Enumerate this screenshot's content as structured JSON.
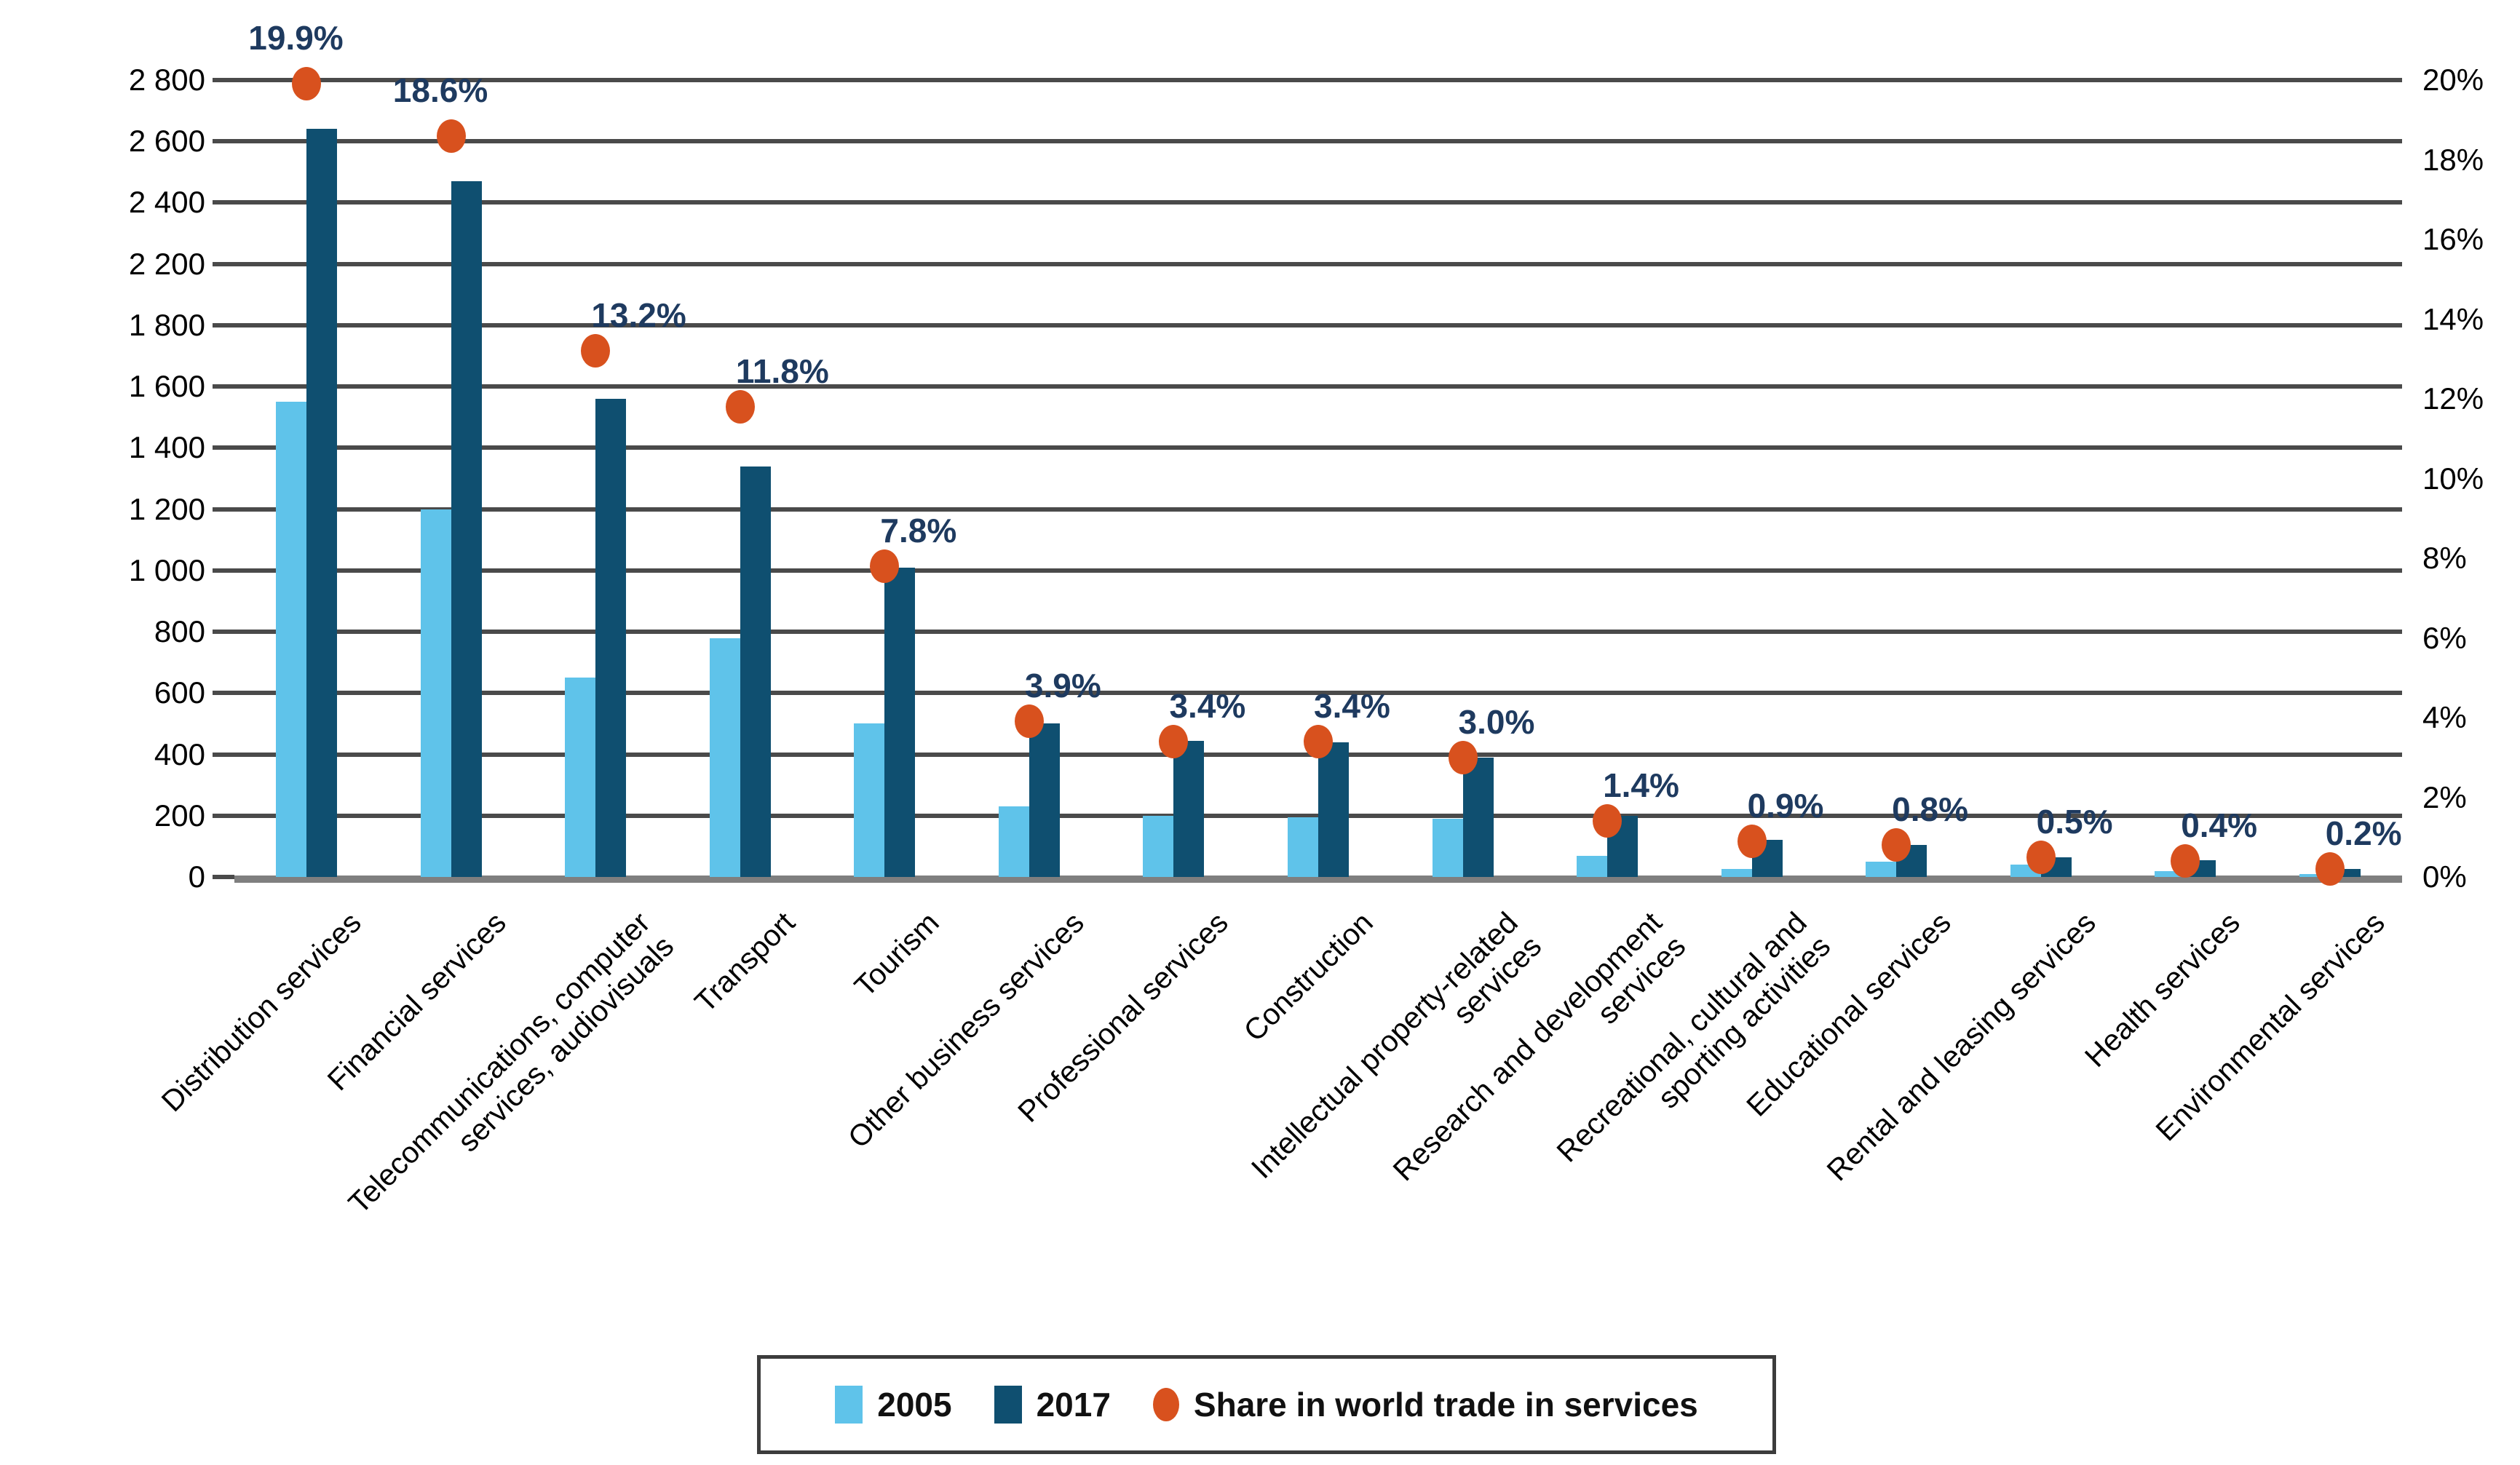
{
  "chart_data": {
    "type": "bar",
    "title": "",
    "xlabel": "",
    "ylabel_left": "",
    "ylabel_right": "",
    "grid": true,
    "legend_position": "bottom-center",
    "categories": [
      [
        "Distribution services"
      ],
      [
        "Financial services"
      ],
      [
        "Telecommunications, computer",
        "services, audiovisuals"
      ],
      [
        "Transport"
      ],
      [
        "Tourism"
      ],
      [
        "Other business services"
      ],
      [
        "Professional services"
      ],
      [
        "Construction"
      ],
      [
        "Intellectual property-related",
        "services"
      ],
      [
        "Research and development",
        "services"
      ],
      [
        "Recreational, cultural and",
        "sporting activities"
      ],
      [
        "Educational services"
      ],
      [
        "Rental and leasing services"
      ],
      [
        "Health services"
      ],
      [
        "Environmental services"
      ]
    ],
    "series": [
      {
        "name": "2005",
        "color": "#5FC3EA",
        "values": [
          1550,
          1200,
          650,
          780,
          500,
          230,
          200,
          195,
          190,
          70,
          25,
          50,
          40,
          20,
          10
        ]
      },
      {
        "name": "2017",
        "color": "#0F4F70",
        "values": [
          2640,
          2470,
          1560,
          1340,
          1010,
          500,
          445,
          440,
          390,
          200,
          120,
          105,
          65,
          55,
          25
        ]
      }
    ],
    "share_series": {
      "name": "Share in world trade in services",
      "color": "#D8511E",
      "values_pct": [
        19.9,
        18.6,
        13.2,
        11.8,
        7.8,
        3.9,
        3.4,
        3.4,
        3.0,
        1.4,
        0.9,
        0.8,
        0.5,
        0.4,
        0.2
      ],
      "labels": [
        "19.9%",
        "18.6%",
        "13.2%",
        "11.8%",
        "7.8%",
        "3.9%",
        "3.4%",
        "3.4%",
        "3.0%",
        "1.4%",
        "0.9%",
        "0.8%",
        "0.5%",
        "0.4%",
        "0.2%"
      ]
    },
    "y_axis_left": {
      "tick_labels_top_down": [
        "2 800",
        "2 600",
        "2 400",
        "2 200",
        "1 800",
        "1 600",
        "1 400",
        "1 200",
        "1 000",
        "800",
        "600",
        "400",
        "200",
        "0"
      ],
      "anchor_values_ascending": [
        0,
        200,
        400,
        600,
        800,
        1000,
        1200,
        1400,
        1600,
        1800,
        2200,
        2400,
        2600,
        2800
      ]
    },
    "y_axis_right": {
      "tick_labels_top_down": [
        "20%",
        "18%",
        "16%",
        "14%",
        "12%",
        "10%",
        "8%",
        "6%",
        "4%",
        "2%",
        "0%"
      ],
      "tick_values_top_down": [
        20,
        18,
        16,
        14,
        12,
        10,
        8,
        6,
        4,
        2,
        0
      ],
      "max_pct": 20
    },
    "legend": {
      "items": [
        "2005",
        "2017",
        "Share in world trade in services"
      ]
    }
  },
  "colors": {
    "bar_2005": "#5FC3EA",
    "bar_2017": "#0F4F70",
    "share_dot": "#D8511E",
    "gridline": "#4a4a4a",
    "baseline": "#7f7f7f",
    "pct_label_text": "#1e3a5f"
  }
}
